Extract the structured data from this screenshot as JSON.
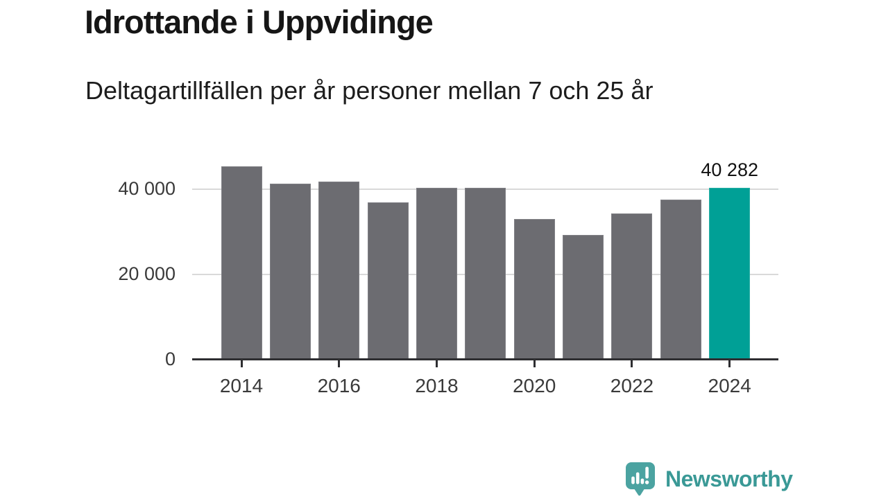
{
  "title": "Idrottande i Uppvidinge",
  "subtitle": "Deltagartillfällen per år personer mellan 7 och 25 år",
  "colors": {
    "bar": "#6c6c71",
    "highlight": "#00a096",
    "gridline": "#d9d9d9",
    "axis": "#2e2e31",
    "tick_text": "#3a3a3a",
    "title_text": "#161616",
    "logo_bubble": "#4ba3a1",
    "logo_text": "#3a9996"
  },
  "chart_data": {
    "type": "bar",
    "title": "Idrottande i Uppvidinge",
    "subtitle": "Deltagartillfällen per år personer mellan 7 och 25 år",
    "categories": [
      "2014",
      "2015",
      "2016",
      "2017",
      "2018",
      "2019",
      "2020",
      "2021",
      "2022",
      "2023",
      "2024"
    ],
    "values": [
      45400,
      41300,
      41800,
      36800,
      40300,
      40300,
      33000,
      29200,
      34300,
      37500,
      40282
    ],
    "highlight_index": 10,
    "highlight_label": "40 282",
    "xticks": [
      "2014",
      "2016",
      "2018",
      "2020",
      "2022",
      "2024"
    ],
    "yticks": [
      {
        "value": 0,
        "label": "0",
        "grid": false
      },
      {
        "value": 20000,
        "label": "20 000",
        "grid": true
      },
      {
        "value": 40000,
        "label": "40 000",
        "grid": true
      }
    ],
    "ylim": [
      0,
      46000
    ],
    "grid": "horizontal",
    "legend": "none",
    "xlabel": "",
    "ylabel": ""
  },
  "footer": {
    "brand": "Newsworthy",
    "logo_icon": "speech-bubble-bar-chart-icon"
  }
}
